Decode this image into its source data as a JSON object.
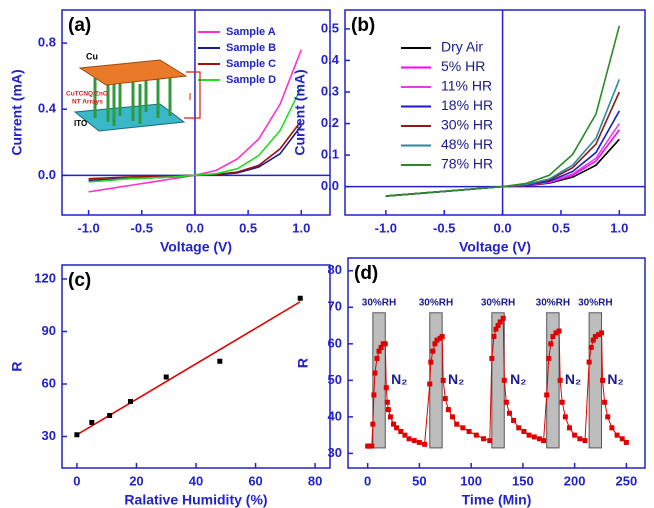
{
  "chart_data": [
    {
      "type": "line",
      "title": "(a)",
      "x_label": "Voltage (V)",
      "y_label": "Current (mA)",
      "x": [
        -1.0,
        -0.8,
        -0.6,
        -0.4,
        -0.2,
        0,
        0.2,
        0.4,
        0.6,
        0.8,
        1.0
      ],
      "series": [
        {
          "name": "Sample A",
          "color": "#ff33cc",
          "values": [
            -0.1,
            -0.08,
            -0.06,
            -0.04,
            -0.02,
            0,
            0.03,
            0.1,
            0.22,
            0.43,
            0.76
          ]
        },
        {
          "name": "Sample B",
          "color": "#1a1a8c",
          "values": [
            -0.03,
            -0.025,
            -0.02,
            -0.015,
            -0.01,
            0,
            0.004,
            0.015,
            0.05,
            0.13,
            0.3
          ]
        },
        {
          "name": "Sample C",
          "color": "#a01010",
          "values": [
            -0.02,
            -0.015,
            -0.01,
            -0.008,
            -0.004,
            0,
            0.005,
            0.02,
            0.06,
            0.16,
            0.33
          ]
        },
        {
          "name": "Sample D",
          "color": "#22dd22",
          "values": [
            -0.04,
            -0.03,
            -0.02,
            -0.015,
            -0.01,
            0,
            0.01,
            0.04,
            0.12,
            0.27,
            0.53
          ]
        }
      ],
      "xlim": [
        -1.25,
        1.27
      ],
      "ylim": [
        -0.24,
        1.0
      ],
      "xticks": [
        {
          "value": -1.0,
          "label": "-1.0"
        },
        {
          "value": -0.5,
          "label": "-0.5"
        },
        {
          "value": 0,
          "label": "0.0"
        },
        0.5,
        {
          "value": 1.0,
          "label": "1.0"
        }
      ],
      "yticks": [
        {
          "value": 0,
          "label": "0.0"
        },
        0.4,
        0.8
      ],
      "zero_lines": true,
      "legend": "upper right",
      "annotations": [
        "Cu",
        "CuTCNQ/ZnO",
        "NT Arrays",
        "ITO"
      ]
    },
    {
      "type": "line",
      "title": "(b)",
      "x_label": "Voltage (V)",
      "y_label": "Current (mA)",
      "x": [
        -1.0,
        -0.8,
        -0.6,
        -0.4,
        -0.2,
        0,
        0.2,
        0.4,
        0.6,
        0.8,
        1.0
      ],
      "series": [
        {
          "name": "Dry Air",
          "color": "#000000",
          "values": [
            -0.03,
            -0.024,
            -0.018,
            -0.012,
            -0.006,
            0,
            0.003,
            0.011,
            0.03,
            0.068,
            0.15
          ]
        },
        {
          "name": "5% HR",
          "color": "#ff00ff",
          "values": [
            -0.03,
            -0.024,
            -0.018,
            -0.012,
            -0.006,
            0,
            0.004,
            0.013,
            0.036,
            0.081,
            0.18
          ]
        },
        {
          "name": "11% HR",
          "color": "#e040e0",
          "values": [
            -0.03,
            -0.024,
            -0.018,
            -0.012,
            -0.006,
            0,
            0.004,
            0.014,
            0.04,
            0.09,
            0.2
          ]
        },
        {
          "name": "18% HR",
          "color": "#1a1ad0",
          "values": [
            -0.03,
            -0.024,
            -0.018,
            -0.012,
            -0.006,
            0,
            0.005,
            0.017,
            0.048,
            0.108,
            0.24
          ]
        },
        {
          "name": "30% HR",
          "color": "#8b1a1a",
          "values": [
            -0.03,
            -0.024,
            -0.018,
            -0.012,
            -0.006,
            0,
            0.006,
            0.021,
            0.06,
            0.135,
            0.3
          ]
        },
        {
          "name": "48% HR",
          "color": "#2a8aa0",
          "values": [
            -0.03,
            -0.024,
            -0.018,
            -0.012,
            -0.006,
            0,
            0.007,
            0.024,
            0.068,
            0.153,
            0.34
          ]
        },
        {
          "name": "78% HR",
          "color": "#2a8a2a",
          "values": [
            -0.03,
            -0.024,
            -0.018,
            -0.012,
            -0.006,
            0,
            0.01,
            0.036,
            0.102,
            0.23,
            0.51
          ]
        }
      ],
      "xlim": [
        -1.35,
        1.22
      ],
      "ylim": [
        -0.09,
        0.56
      ],
      "xticks": [
        {
          "value": -1.0,
          "label": "-1.0"
        },
        {
          "value": -0.5,
          "label": "-0.5"
        },
        {
          "value": 0,
          "label": "0.0"
        },
        0.5,
        {
          "value": 1.0,
          "label": "1.0"
        }
      ],
      "yticks": [
        {
          "value": 0,
          "label": "0.0"
        },
        0.1,
        0.2,
        0.3,
        0.4,
        0.5
      ],
      "zero_lines": true,
      "legend": "upper left"
    },
    {
      "type": "scatter",
      "title": "(c)",
      "x_label": "Ralative Humidity (%)",
      "y_label": "R",
      "x": [
        0,
        5,
        11,
        18,
        30,
        48,
        75
      ],
      "values": [
        31,
        38,
        42,
        50,
        64,
        73,
        109
      ],
      "color": "#000000",
      "fit_line": {
        "color": "#e00000",
        "x": [
          0,
          75
        ],
        "values": [
          31,
          107
        ]
      },
      "xlim": [
        -5,
        85
      ],
      "ylim": [
        12,
        128
      ],
      "xticks": [
        0,
        20,
        40,
        60,
        80
      ],
      "yticks": [
        30,
        60,
        90,
        120
      ]
    },
    {
      "type": "line",
      "title": "(d)",
      "x_label": "Time (Min)",
      "y_label": "R",
      "markers": true,
      "series": [
        {
          "color": "#e00000",
          "x": [
            0,
            2,
            4,
            5,
            6,
            7,
            9,
            11,
            13,
            15,
            17,
            18,
            19,
            20,
            22,
            25,
            28,
            32,
            36,
            40,
            45,
            50,
            55,
            60,
            61,
            63,
            65,
            67,
            70,
            72,
            73,
            75,
            78,
            82,
            86,
            92,
            98,
            105,
            112,
            118,
            120,
            122,
            124,
            126,
            128,
            131,
            132,
            134,
            137,
            141,
            146,
            151,
            156,
            161,
            166,
            170,
            173,
            175,
            177,
            179,
            182,
            185,
            186,
            188,
            191,
            195,
            200,
            205,
            210,
            214,
            216,
            218,
            220,
            223,
            226,
            227,
            229,
            232,
            236,
            241,
            246,
            250
          ],
          "values": [
            32,
            32,
            32,
            38,
            46,
            52,
            56,
            58,
            59,
            60,
            60,
            48,
            44,
            42,
            40,
            38,
            37,
            36,
            35,
            34,
            33.5,
            33,
            32.5,
            49,
            55,
            58,
            60,
            61,
            61.5,
            62,
            50,
            45,
            42,
            40,
            38,
            37,
            36,
            35,
            34,
            33.5,
            56,
            62,
            64,
            65,
            66,
            67,
            50,
            44,
            41,
            39,
            37,
            36,
            35,
            34.5,
            34,
            33.5,
            46,
            56,
            60,
            62,
            63,
            63.5,
            50,
            44,
            40,
            37,
            35,
            34,
            33.5,
            55,
            59,
            61,
            62,
            62.5,
            63,
            50,
            44,
            40,
            37,
            35,
            34,
            33
          ]
        }
      ],
      "bands": [
        [
          5,
          17
        ],
        [
          60,
          72
        ],
        [
          120,
          132
        ],
        [
          173,
          185
        ],
        [
          214,
          226
        ]
      ],
      "band_ylim": [
        31.5,
        68.5
      ],
      "band_labels": [
        "30%RH",
        "30%RH",
        "30%RH",
        "30%RH",
        "30%RH"
      ],
      "gap_labels": [
        "N₂",
        "N₂",
        "N₂",
        "N₂",
        "N₂"
      ],
      "xlim": [
        -19,
        268
      ],
      "ylim": [
        26,
        83.5
      ],
      "xticks": [
        0,
        50,
        100,
        150,
        200,
        250
      ],
      "yticks": [
        30,
        40,
        50,
        60,
        70,
        80
      ]
    }
  ]
}
